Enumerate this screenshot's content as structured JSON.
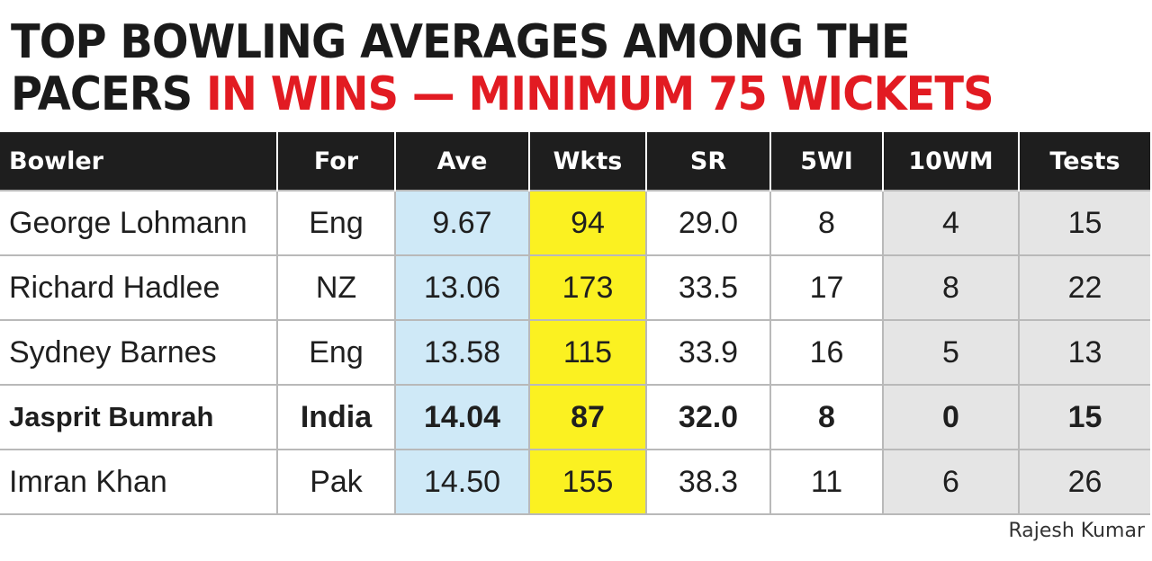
{
  "title": {
    "line1": "TOP BOWLING AVERAGES AMONG THE",
    "line2_black": "PACERS ",
    "line2_red": "IN WINS — MINIMUM 75 WICKETS"
  },
  "colors": {
    "title_red": "#e21b22",
    "header_bg": "#1e1e1e",
    "ave_column_bg": "#cfe9f7",
    "wkts_column_bg": "#fbf121",
    "grey_column_bg": "#e5e5e5"
  },
  "chart_data": {
    "type": "table",
    "title": "TOP BOWLING AVERAGES AMONG THE PACERS IN WINS — MINIMUM 75 WICKETS",
    "columns": [
      "Bowler",
      "For",
      "Ave",
      "Wkts",
      "SR",
      "5WI",
      "10WM",
      "Tests"
    ],
    "rows": [
      [
        "George Lohmann",
        "Eng",
        "9.67",
        "94",
        "29.0",
        "8",
        "4",
        "15"
      ],
      [
        "Richard Hadlee",
        "NZ",
        "13.06",
        "173",
        "33.5",
        "17",
        "8",
        "22"
      ],
      [
        "Sydney Barnes",
        "Eng",
        "13.58",
        "115",
        "33.9",
        "16",
        "5",
        "13"
      ],
      [
        "Jasprit Bumrah",
        "India",
        "14.04",
        "87",
        "32.0",
        "8",
        "0",
        "15"
      ],
      [
        "Imran Khan",
        "Pak",
        "14.50",
        "155",
        "38.3",
        "11",
        "6",
        "26"
      ]
    ],
    "highlighted_row": "Jasprit Bumrah"
  },
  "credit": "Rajesh Kumar"
}
